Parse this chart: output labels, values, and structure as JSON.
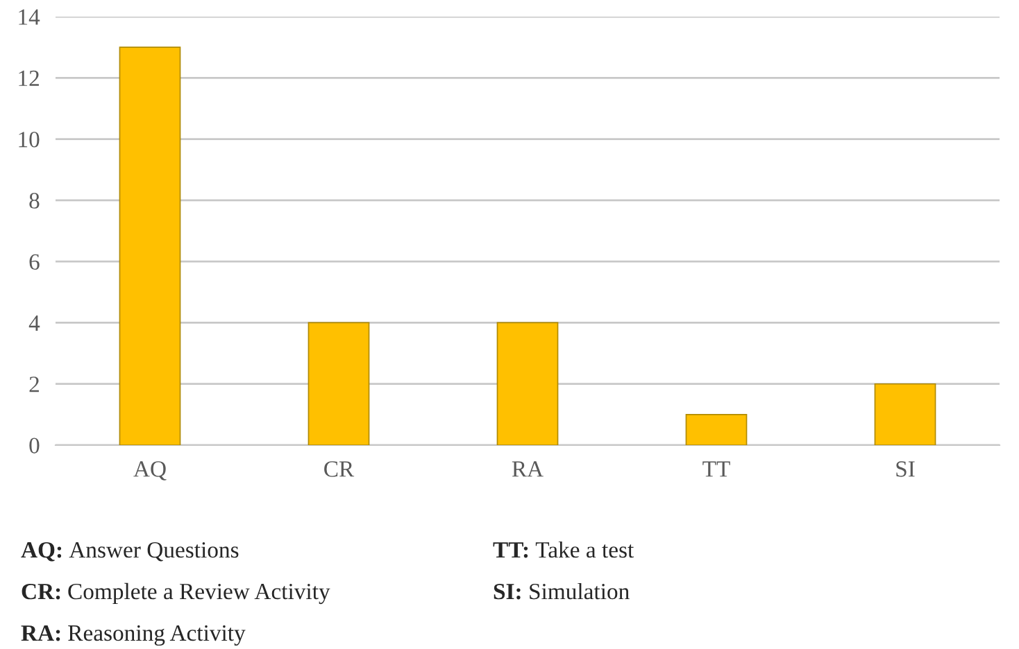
{
  "chart_data": {
    "type": "bar",
    "categories": [
      "AQ",
      "CR",
      "RA",
      "TT",
      "SI"
    ],
    "values": [
      13,
      4,
      4,
      1,
      2
    ],
    "color": "#ffc000",
    "ylim": [
      0,
      14
    ],
    "yticks": [
      0,
      2,
      4,
      6,
      8,
      10,
      12,
      14
    ],
    "grid": "y",
    "annotations": [
      "AQ: Answer Questions",
      "TT: Take a test",
      "CR: Complete a Review Activity",
      "SI: Simulation",
      "RA: Reasoning Activity"
    ]
  }
}
